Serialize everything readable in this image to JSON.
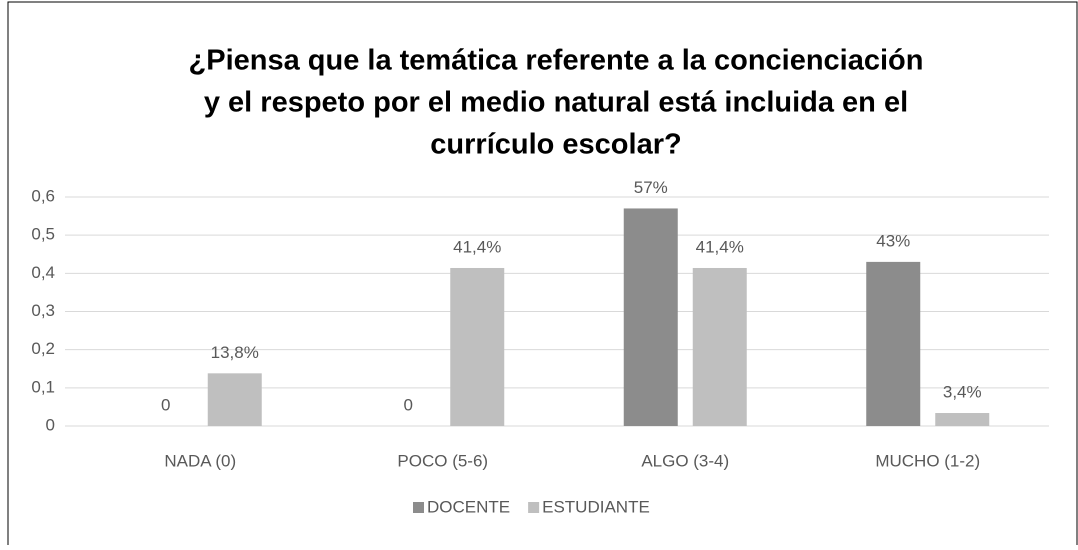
{
  "chart_data": {
    "type": "bar",
    "title": [
      "¿Piensa que la temática referente a la concienciación",
      "y el respeto por el medio natural está incluida en el",
      "currículo escolar?"
    ],
    "categories": [
      "NADA (0)",
      "POCO (5-6)",
      "ALGO (3-4)",
      "MUCHO (1-2)"
    ],
    "series": [
      {
        "name": "DOCENTE",
        "color": "#8c8c8c",
        "values": [
          0,
          0,
          0.57,
          0.43
        ],
        "value_labels": [
          "0",
          "0",
          "57%",
          "43%"
        ]
      },
      {
        "name": "ESTUDIANTE",
        "color": "#bfbfbf",
        "values": [
          0.138,
          0.414,
          0.414,
          0.034
        ],
        "value_labels": [
          "13,8%",
          "41,4%",
          "41,4%",
          "3,4%"
        ]
      }
    ],
    "ylim": [
      0,
      0.6
    ],
    "yticks": [
      0,
      {
        "value": 0.1,
        "label": "0,1"
      },
      {
        "value": 0.2,
        "label": "0,2"
      },
      {
        "value": 0.3,
        "label": "0,3"
      },
      {
        "value": 0.4,
        "label": "0,4"
      },
      {
        "value": 0.5,
        "label": "0,5"
      },
      {
        "value": 0.6,
        "label": "0,6"
      }
    ],
    "grid": true,
    "legend": "bottom"
  }
}
